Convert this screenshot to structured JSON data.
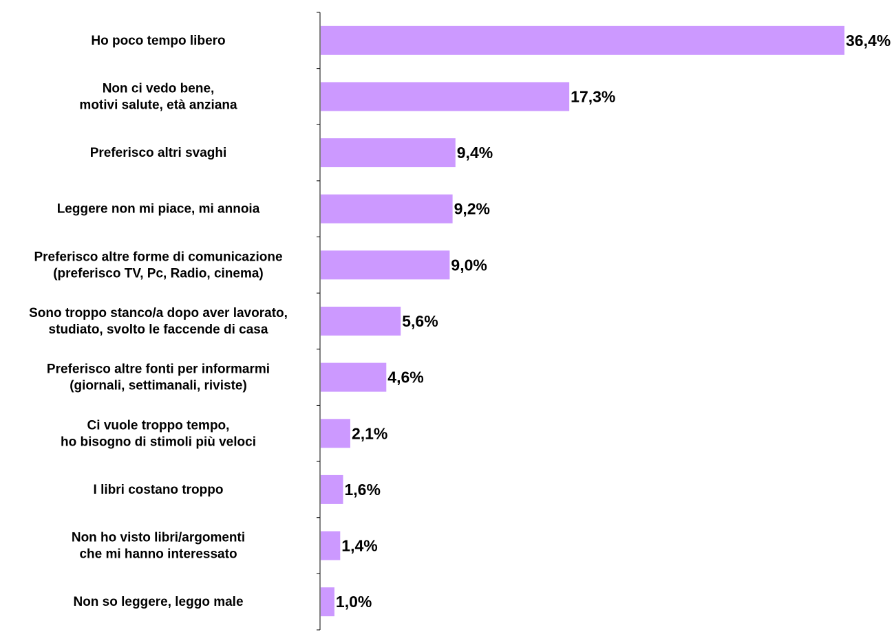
{
  "chart_data": {
    "type": "bar",
    "orientation": "horizontal",
    "bar_color": "#cc99ff",
    "axis_color": "#000000",
    "grid": false,
    "legend": "none",
    "xlim": [
      0,
      36.4
    ],
    "categories": [
      [
        "Ho poco tempo libero"
      ],
      [
        "Non ci vedo bene,",
        "motivi salute, età anziana"
      ],
      [
        "Preferisco altri svaghi"
      ],
      [
        "Leggere non mi piace, mi annoia"
      ],
      [
        "Preferisco altre forme di comunicazione",
        "(preferisco TV, Pc, Radio, cinema)"
      ],
      [
        "Sono troppo stanco/a dopo aver lavorato,",
        "studiato, svolto le faccende di casa"
      ],
      [
        "Preferisco altre fonti per informarmi",
        "(giornali, settimanali, riviste)"
      ],
      [
        "Ci vuole troppo tempo,",
        "ho bisogno di stimoli più veloci"
      ],
      [
        "I libri costano troppo"
      ],
      [
        "Non ho visto libri/argomenti",
        "che mi hanno interessato"
      ],
      [
        "Non so leggere, leggo male"
      ]
    ],
    "values": [
      36.4,
      17.3,
      9.4,
      9.2,
      9.0,
      5.6,
      4.6,
      2.1,
      1.6,
      1.4,
      1.0
    ],
    "value_labels": [
      "36,4%",
      "17,3%",
      "9,4%",
      "9,2%",
      "9,0%",
      "5,6%",
      "4,6%",
      "2,1%",
      "1,6%",
      "1,4%",
      "1,0%"
    ]
  }
}
